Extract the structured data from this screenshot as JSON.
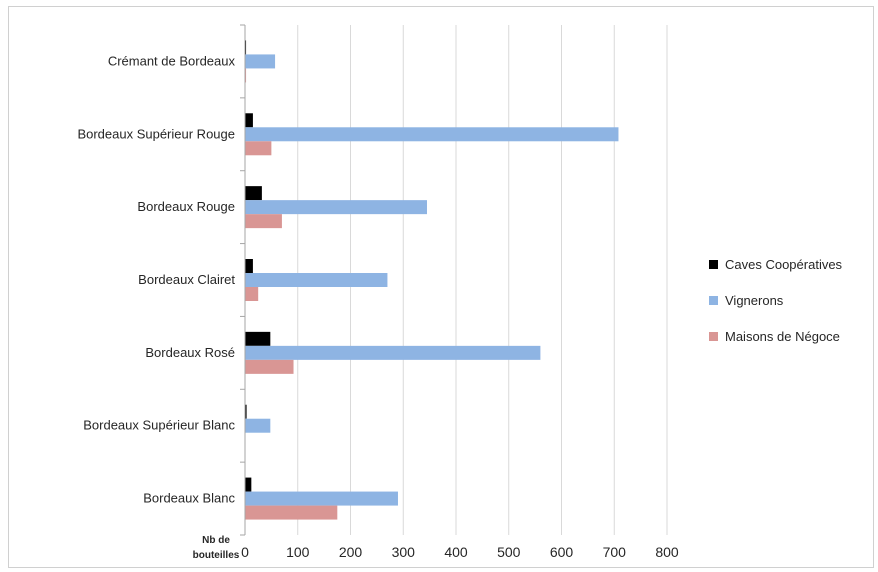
{
  "chart_data": {
    "type": "bar",
    "orientation": "horizontal",
    "categories": [
      "Crémant de Bordeaux",
      "Bordeaux Supérieur Rouge",
      "Bordeaux Rouge",
      "Bordeaux Clairet",
      "Bordeaux Rosé",
      "Bordeaux Supérieur Blanc",
      "Bordeaux Blanc"
    ],
    "series": [
      {
        "name": "Caves Coopératives",
        "color": "#000000",
        "values": [
          2,
          15,
          32,
          15,
          48,
          3,
          12
        ]
      },
      {
        "name": "Vignerons",
        "color": "#8eb4e3",
        "values": [
          57,
          708,
          345,
          270,
          560,
          48,
          290
        ]
      },
      {
        "name": "Maisons de Négoce",
        "color": "#d99694",
        "values": [
          2,
          50,
          70,
          25,
          92,
          0,
          175
        ]
      }
    ],
    "xlabel": [
      "Nb de",
      "bouteilles"
    ],
    "xlim": [
      0,
      800
    ],
    "xticks": [
      0,
      100,
      200,
      300,
      400,
      500,
      600,
      700,
      800
    ],
    "grid": "vertical",
    "legend_position": "right"
  }
}
